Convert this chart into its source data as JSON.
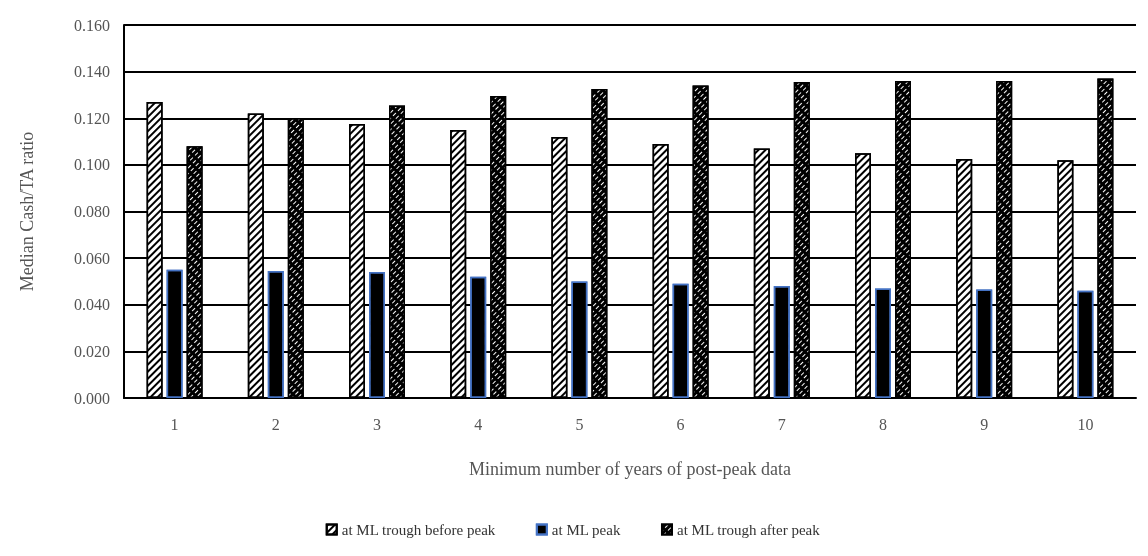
{
  "chart_data": {
    "type": "bar",
    "xlabel": "Minimum number of years of post-peak data",
    "ylabel": "Median Cash/TA ratio",
    "categories": [
      "1",
      "2",
      "3",
      "4",
      "5",
      "6",
      "7",
      "8",
      "9",
      "10"
    ],
    "series": [
      {
        "name": "at ML trough before peak",
        "color": "#ffffff",
        "values": [
          0.127,
          0.122,
          0.1175,
          0.115,
          0.112,
          0.109,
          0.107,
          0.105,
          0.1025,
          0.102
        ]
      },
      {
        "name": "at ML peak",
        "color": "#000000",
        "values": [
          0.055,
          0.0545,
          0.054,
          0.052,
          0.05,
          0.049,
          0.048,
          0.047,
          0.0465,
          0.046
        ]
      },
      {
        "name": "at ML trough after peak",
        "color": "#000000",
        "values": [
          0.108,
          0.12,
          0.1255,
          0.1295,
          0.1325,
          0.134,
          0.1355,
          0.136,
          0.136,
          0.137
        ]
      }
    ],
    "ylim": [
      0,
      0.16
    ],
    "yticks": [
      {
        "value": 0,
        "label": "0.000"
      },
      {
        "value": 0.02,
        "label": "0.020"
      },
      {
        "value": 0.04,
        "label": "0.040"
      },
      {
        "value": 0.06,
        "label": "0.060"
      },
      {
        "value": 0.08,
        "label": "0.080"
      },
      {
        "value": 0.1,
        "label": "0.100"
      },
      {
        "value": 0.12,
        "label": "0.120"
      },
      {
        "value": 0.14,
        "label": "0.140"
      },
      {
        "value": 0.16,
        "label": "0.160"
      }
    ],
    "grid": "y",
    "legend": "bottom"
  }
}
